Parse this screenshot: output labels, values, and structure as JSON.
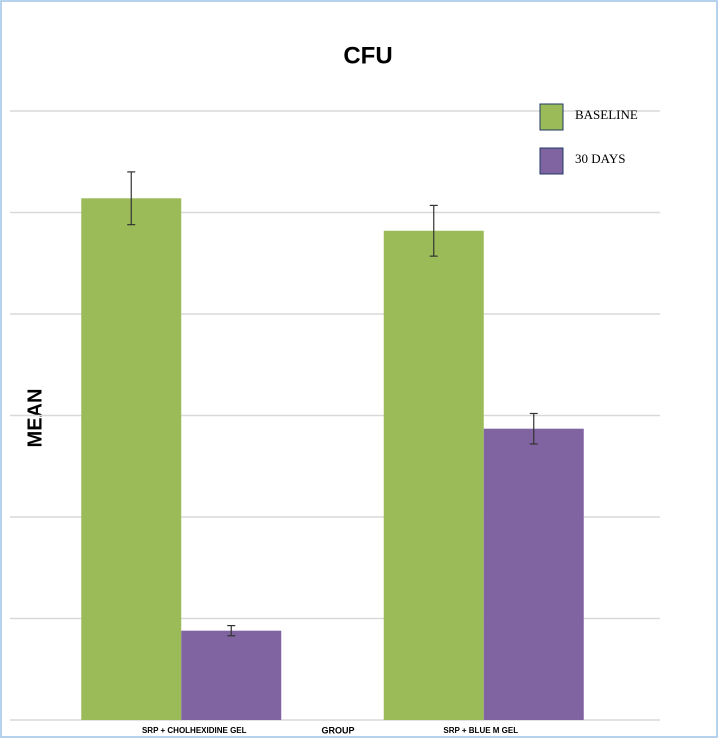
{
  "chart_data": {
    "type": "bar",
    "title": "CFU",
    "xlabel": "GROUP",
    "ylabel": "MEAN",
    "categories": [
      "SRP + CHOLHEXIDINE GEL",
      "SRP + BLUE M GEL"
    ],
    "series": [
      {
        "name": "BASELINE",
        "color": "#9bbb59",
        "values": [
          5.14,
          4.82
        ],
        "errors": [
          0.26,
          0.25
        ]
      },
      {
        "name": "30 DAYS",
        "color": "#8064a2",
        "values": [
          0.88,
          2.87
        ],
        "errors": [
          0.05,
          0.15
        ]
      }
    ],
    "ylim": [
      0,
      6
    ],
    "yticks": [
      0,
      1,
      2,
      3,
      4,
      5,
      6
    ],
    "grid": true,
    "legend": "top-right"
  }
}
